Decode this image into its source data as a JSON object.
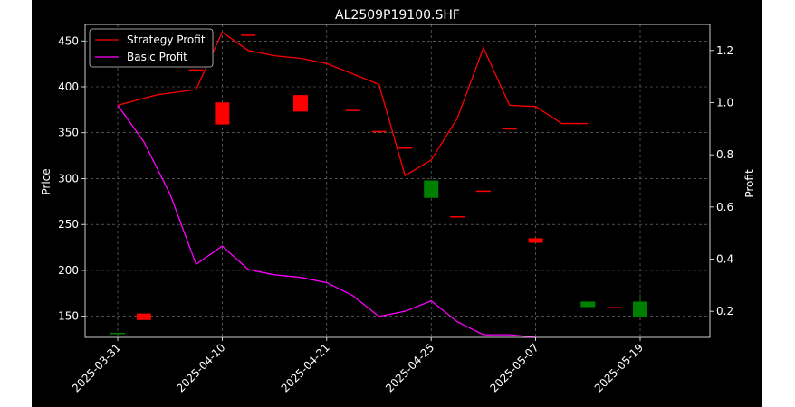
{
  "chart_data": {
    "type": "candlestick+line",
    "title": "AL2509P19100.SHF",
    "ylabel_left": "Price",
    "ylabel_right": "Profit",
    "ylim_left": [
      127,
      468
    ],
    "ylim_right": [
      0.1,
      1.3
    ],
    "yticks_left": [
      150,
      200,
      250,
      300,
      350,
      400,
      450
    ],
    "yticks_right": [
      0.2,
      0.4,
      0.6,
      0.8,
      1.0,
      1.2
    ],
    "ytick_labels_right": [
      "0.2",
      "0.4",
      "0.6",
      "0.8",
      "1.0",
      "1.2"
    ],
    "xticks": [
      {
        "index": 0,
        "label": "2025-03-31"
      },
      {
        "index": 4,
        "label": "2025-04-10"
      },
      {
        "index": 8,
        "label": "2025-04-21"
      },
      {
        "index": 12,
        "label": "2025-04-25"
      },
      {
        "index": 16,
        "label": "2025-05-07"
      },
      {
        "index": 20,
        "label": "2025-05-19"
      }
    ],
    "grid": true,
    "legend_position": "top-left",
    "colors": {
      "background": "#000000",
      "up": "#008000",
      "down": "#ff0000",
      "strategy": "#ff0000",
      "basic": "#ff00ff",
      "text": "#ffffff",
      "grid": "#808080"
    },
    "candles": [
      {
        "i": 0,
        "open": 131,
        "close": 132,
        "high": 132,
        "low": 131
      },
      {
        "i": 1,
        "open": 153,
        "close": 146,
        "high": 153,
        "low": 146
      },
      {
        "i": 3,
        "open": 419,
        "close": 418,
        "high": 419,
        "low": 418
      },
      {
        "i": 4,
        "open": 383,
        "close": 359,
        "high": 383,
        "low": 359
      },
      {
        "i": 5,
        "open": 457,
        "close": 456,
        "high": 457,
        "low": 456
      },
      {
        "i": 7,
        "open": 391,
        "close": 373,
        "high": 391,
        "low": 373
      },
      {
        "i": 9,
        "open": 375,
        "close": 374,
        "high": 375,
        "low": 374
      },
      {
        "i": 10,
        "open": 352,
        "close": 351,
        "high": 352,
        "low": 351
      },
      {
        "i": 11,
        "open": 334,
        "close": 333,
        "high": 334,
        "low": 333
      },
      {
        "i": 12,
        "open": 279,
        "close": 298,
        "high": 298,
        "low": 279
      },
      {
        "i": 13,
        "open": 259,
        "close": 258,
        "high": 259,
        "low": 258
      },
      {
        "i": 14,
        "open": 287,
        "close": 286,
        "high": 287,
        "low": 286
      },
      {
        "i": 15,
        "open": 355,
        "close": 354,
        "high": 355,
        "low": 354
      },
      {
        "i": 16,
        "open": 235,
        "close": 230,
        "high": 235,
        "low": 230
      },
      {
        "i": 18,
        "open": 160,
        "close": 166,
        "high": 166,
        "low": 160
      },
      {
        "i": 19,
        "open": 160,
        "close": 159,
        "high": 160,
        "low": 159
      },
      {
        "i": 20,
        "open": 149,
        "close": 166,
        "high": 174,
        "low": 149
      }
    ],
    "series": [
      {
        "name": "Strategy Profit",
        "color": "#ff0000",
        "x": [
          0,
          1.5,
          3,
          4,
          5,
          6,
          7,
          8,
          9,
          10,
          11,
          12,
          13,
          14,
          15,
          16,
          17,
          18
        ],
        "values": [
          0.99,
          1.03,
          1.05,
          1.27,
          1.2,
          1.18,
          1.17,
          1.15,
          1.11,
          1.07,
          0.72,
          0.78,
          0.94,
          1.21,
          0.99,
          0.985,
          0.92,
          0.92
        ],
        "x_offset_start": 0
      },
      {
        "name": "Basic Profit",
        "color": "#ff00ff",
        "x": [
          0,
          1,
          2,
          3,
          4,
          5,
          6,
          7,
          8,
          9,
          10,
          11,
          12,
          13,
          14,
          15,
          16
        ],
        "values": [
          0.99,
          0.85,
          0.65,
          0.38,
          0.45,
          0.36,
          0.34,
          0.33,
          0.31,
          0.26,
          0.18,
          0.2,
          0.24,
          0.16,
          0.11,
          0.11,
          0.1
        ]
      }
    ]
  }
}
